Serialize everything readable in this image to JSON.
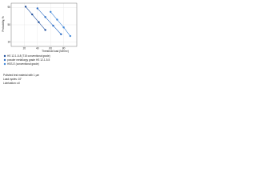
{
  "chart_data": {
    "type": "scatter",
    "ylabel": "Probability, %",
    "xlabel": "Threshold load (N/mm²)",
    "xlim": [
      0,
      100
    ],
    "ylim": [
      0,
      100
    ],
    "xticks": [
      20,
      40,
      60,
      80
    ],
    "yticks": [
      10,
      50,
      90
    ],
    "grid": true,
    "series": [
      {
        "name": "HS 12-1-5-8 (T15 conventional grade)",
        "color": "#1f4e9c",
        "x": [
          22,
          32,
          42,
          52
        ],
        "values": [
          92,
          74,
          56,
          38
        ]
      },
      {
        "name": "powder metallurgy grade HS 12-1-5-5",
        "color": "#2b6cc4",
        "x": [
          40,
          52,
          64,
          76
        ],
        "values": [
          88,
          68,
          48,
          28
        ]
      },
      {
        "name": "HSS-E (conventional grade)",
        "color": "#3f86d8",
        "x": [
          60,
          70,
          80,
          90
        ],
        "values": [
          80,
          62,
          44,
          24
        ]
      }
    ],
    "notes": [
      "Polished test material with 1 µm",
      "Load cycles: 10⁷",
      "Lubrication: oil"
    ]
  }
}
